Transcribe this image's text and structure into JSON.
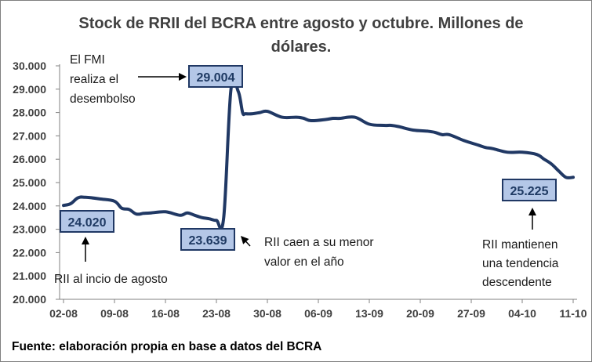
{
  "chart_data": {
    "type": "line",
    "title_lines": [
      "Stock de RRII del BCRA entre agosto y octubre. Millones de",
      "dólares."
    ],
    "x_tick_labels": [
      "02-08",
      "09-08",
      "16-08",
      "23-08",
      "30-08",
      "06-09",
      "13-09",
      "20-09",
      "27-09",
      "04-10",
      "11-10"
    ],
    "y_tick_labels": [
      "20.000",
      "21.000",
      "22.000",
      "23.000",
      "24.000",
      "25.000",
      "26.000",
      "27.000",
      "28.000",
      "29.000",
      "30.000"
    ],
    "ylim": [
      20000,
      30000
    ],
    "xlim": [
      0,
      70
    ],
    "grid": false,
    "line_color": "#203864",
    "series": [
      {
        "x": [
          0,
          1,
          2,
          3,
          5,
          7,
          8,
          9,
          10,
          11,
          12,
          14,
          16,
          17,
          18,
          19,
          20,
          21,
          22,
          23,
          24,
          24.6,
          25,
          26,
          27,
          28,
          30,
          32,
          33,
          34,
          36,
          37,
          38,
          40,
          42,
          44,
          45,
          46,
          48,
          50,
          51,
          52,
          53,
          55,
          57,
          58,
          59,
          61,
          63,
          65,
          66,
          67,
          68,
          69,
          70
        ],
        "values": [
          24020,
          24100,
          24350,
          24370,
          24300,
          24200,
          23900,
          23850,
          23650,
          23680,
          23700,
          23750,
          23600,
          23700,
          23600,
          23500,
          23450,
          23380,
          23500,
          29004,
          28900,
          28000,
          27950,
          27950,
          28000,
          28050,
          27800,
          27800,
          27750,
          27650,
          27700,
          27750,
          27750,
          27800,
          27500,
          27450,
          27450,
          27400,
          27250,
          27200,
          27150,
          27050,
          27050,
          26800,
          26600,
          26500,
          26450,
          26300,
          26300,
          26200,
          26000,
          25800,
          25500,
          25225,
          25225
        ]
      }
    ],
    "value_boxes": [
      {
        "label": "24.020",
        "x": 0,
        "value": 24020
      },
      {
        "label": "23.639",
        "x": 21,
        "value": 23639
      },
      {
        "label": "29.004",
        "x": 23,
        "value": 29004
      },
      {
        "label": "25.225",
        "x": 69,
        "value": 25225
      }
    ],
    "annotations": [
      {
        "lines": [
          "El FMI",
          "realiza el",
          "desembolso"
        ],
        "target": "29.004"
      },
      {
        "lines": [
          "RII caen a su menor",
          "valor en el año"
        ],
        "target": "23.639"
      },
      {
        "lines": [
          "RII al incio de agosto"
        ],
        "target": "24.020"
      },
      {
        "lines": [
          "RII mantienen",
          "una tendencia",
          "descendente"
        ],
        "target": "25.225"
      }
    ],
    "source": "Fuente: elaboración propia en base a datos del BCRA",
    "box_fill": "#b4c7e7",
    "box_border": "#203864"
  }
}
